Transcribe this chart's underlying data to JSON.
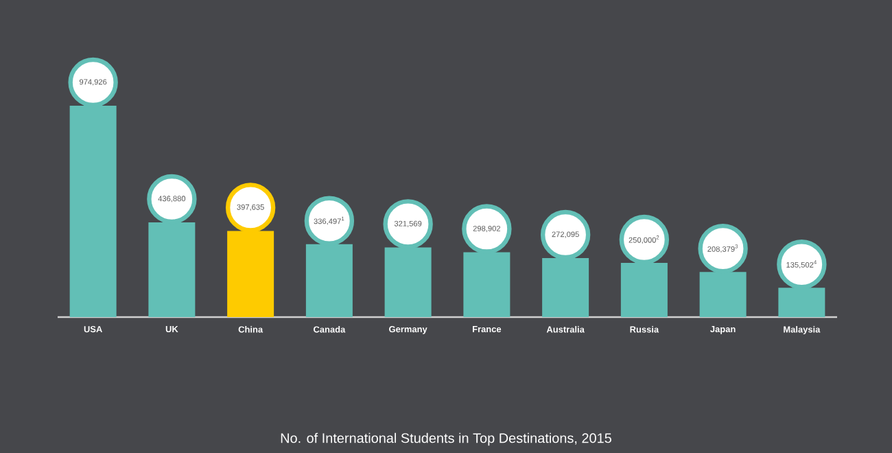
{
  "chart_data": {
    "type": "bar",
    "title": "No. of International Students in Top Destinations, 2015",
    "categories": [
      "USA",
      "UK",
      "China",
      "Canada",
      "Germany",
      "France",
      "Australia",
      "Russia",
      "Japan",
      "Malaysia"
    ],
    "values": [
      974926,
      436880,
      397635,
      336497,
      321569,
      298902,
      272095,
      250000,
      208379,
      135502
    ],
    "colors": [
      "#62bfb6",
      "#62bfb6",
      "#fecb00",
      "#62bfb6",
      "#62bfb6",
      "#62bfb6",
      "#62bfb6",
      "#62bfb6",
      "#62bfb6",
      "#62bfb6"
    ],
    "value_labels": [
      "974,926",
      "436,880",
      "397,635",
      "336,497$^{1}$",
      "321,569",
      "298,902",
      "272,095",
      "250,000$^{2}$",
      "208,379$^{3}$",
      "135,502$^{4}$"
    ],
    "data_labels": false
  }
}
